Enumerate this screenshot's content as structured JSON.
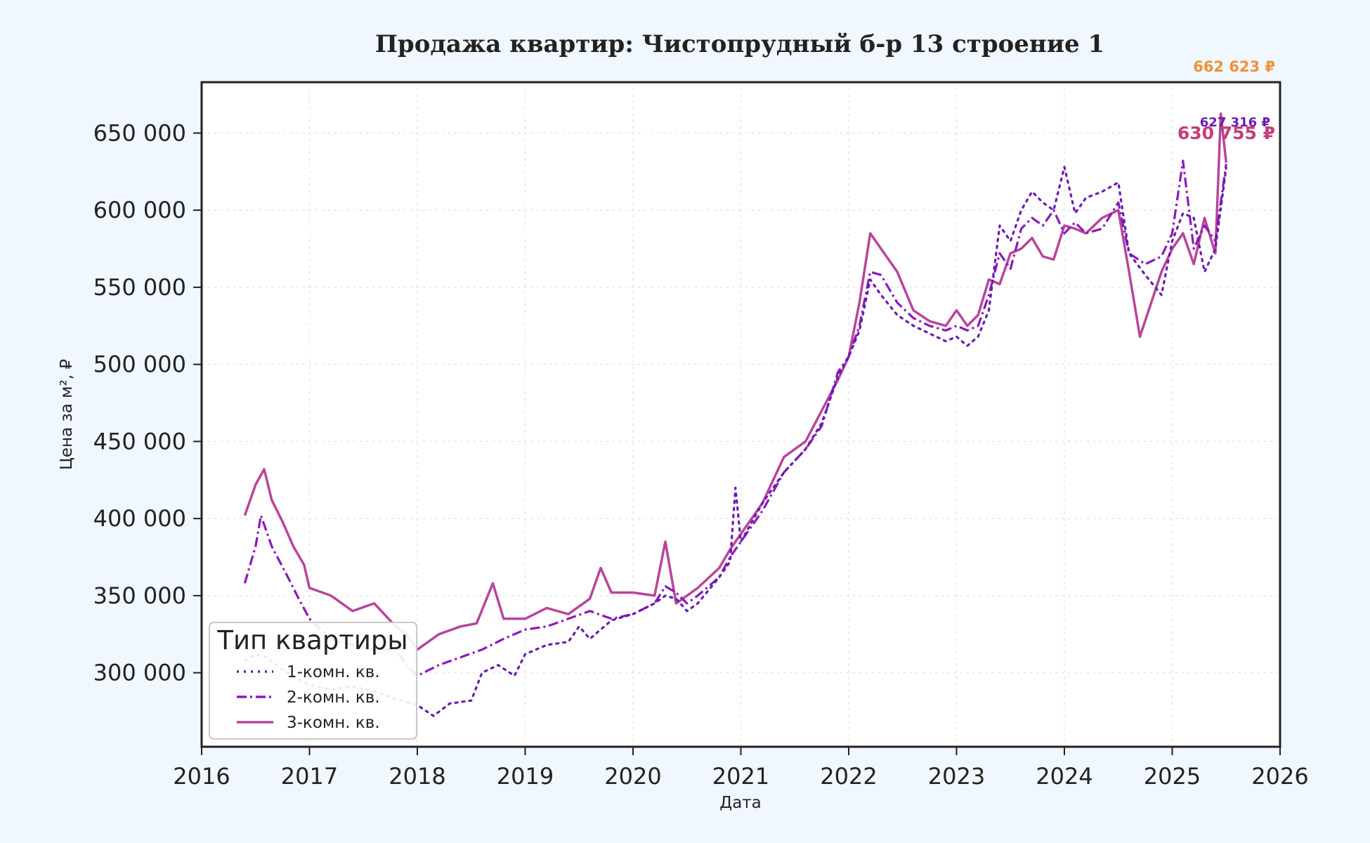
{
  "chart_data": {
    "type": "line",
    "title": "Продажа квартир: Чистопрудный б-р 13 строение 1",
    "xlabel": "Дата",
    "ylabel": "Цена за м², ₽",
    "xlim": [
      2016.0,
      2026.0
    ],
    "ylim": [
      252000,
      683000
    ],
    "x_ticks": [
      "2016",
      "2017",
      "2018",
      "2019",
      "2020",
      "2021",
      "2022",
      "2023",
      "2024",
      "2025",
      "2026"
    ],
    "y_ticks": [
      {
        "value": 300000,
        "label": "300 000"
      },
      {
        "value": 350000,
        "label": "350 000"
      },
      {
        "value": 400000,
        "label": "400 000"
      },
      {
        "value": 450000,
        "label": "450 000"
      },
      {
        "value": 500000,
        "label": "500 000"
      },
      {
        "value": 550000,
        "label": "550 000"
      },
      {
        "value": 600000,
        "label": "600 000"
      },
      {
        "value": 650000,
        "label": "650 000"
      }
    ],
    "grid": true,
    "legend": {
      "title": "Тип квартиры",
      "placement": "lower-left"
    },
    "series": [
      {
        "name": "1-комн. кв.",
        "color": "#6a1bb0",
        "style": "dotted",
        "x": [
          2016.4,
          2016.5,
          2016.6,
          2016.75,
          2016.9,
          2017.0,
          2017.2,
          2017.4,
          2017.6,
          2017.8,
          2018.0,
          2018.15,
          2018.3,
          2018.5,
          2018.6,
          2018.75,
          2018.9,
          2019.0,
          2019.2,
          2019.4,
          2019.5,
          2019.6,
          2019.8,
          2020.0,
          2020.2,
          2020.3,
          2020.4,
          2020.5,
          2020.6,
          2020.8,
          2020.9,
          2020.95,
          2021.0,
          2021.2,
          2021.4,
          2021.6,
          2021.75,
          2021.9,
          2022.0,
          2022.1,
          2022.2,
          2022.3,
          2022.45,
          2022.6,
          2022.75,
          2022.9,
          2023.0,
          2023.1,
          2023.2,
          2023.3,
          2023.4,
          2023.5,
          2023.6,
          2023.7,
          2023.8,
          2023.9,
          2024.0,
          2024.1,
          2024.2,
          2024.35,
          2024.5,
          2024.6,
          2024.75,
          2024.9,
          2025.0,
          2025.1,
          2025.2,
          2025.3,
          2025.4,
          2025.5
        ],
        "values": [
          308000,
          312000,
          310000,
          302000,
          296000,
          292000,
          289000,
          291000,
          288000,
          283000,
          279000,
          272000,
          280000,
          282000,
          300000,
          305000,
          298000,
          312000,
          318000,
          320000,
          330000,
          322000,
          334000,
          338000,
          345000,
          350000,
          348000,
          340000,
          345000,
          362000,
          372000,
          420000,
          385000,
          410000,
          430000,
          445000,
          462000,
          492000,
          505000,
          522000,
          555000,
          545000,
          532000,
          525000,
          520000,
          515000,
          518000,
          512000,
          518000,
          535000,
          590000,
          580000,
          600000,
          612000,
          605000,
          600000,
          628000,
          598000,
          608000,
          612000,
          618000,
          572000,
          558000,
          545000,
          580000,
          598000,
          595000,
          560000,
          575000,
          627316
        ]
      },
      {
        "name": "2-комн. кв.",
        "color": "#8a1ab8",
        "style": "dashdot",
        "x": [
          2016.4,
          2016.5,
          2016.55,
          2016.65,
          2016.8,
          2016.9,
          2017.0,
          2017.2,
          2017.4,
          2017.6,
          2017.8,
          2017.9,
          2018.0,
          2018.2,
          2018.4,
          2018.6,
          2018.8,
          2019.0,
          2019.2,
          2019.4,
          2019.6,
          2019.8,
          2020.0,
          2020.2,
          2020.3,
          2020.4,
          2020.5,
          2020.6,
          2020.8,
          2020.9,
          2021.0,
          2021.2,
          2021.4,
          2021.6,
          2021.75,
          2021.9,
          2022.0,
          2022.1,
          2022.2,
          2022.3,
          2022.45,
          2022.6,
          2022.75,
          2022.9,
          2023.0,
          2023.1,
          2023.2,
          2023.3,
          2023.4,
          2023.5,
          2023.6,
          2023.7,
          2023.8,
          2023.9,
          2024.0,
          2024.1,
          2024.2,
          2024.35,
          2024.5,
          2024.6,
          2024.75,
          2024.9,
          2025.0,
          2025.1,
          2025.2,
          2025.3,
          2025.4,
          2025.5
        ],
        "values": [
          358000,
          382000,
          402000,
          382000,
          362000,
          348000,
          335000,
          322000,
          318000,
          315000,
          315000,
          305000,
          298000,
          305000,
          310000,
          315000,
          322000,
          328000,
          330000,
          335000,
          340000,
          335000,
          338000,
          345000,
          356000,
          352000,
          345000,
          350000,
          362000,
          375000,
          385000,
          405000,
          430000,
          445000,
          460000,
          495000,
          505000,
          525000,
          560000,
          558000,
          540000,
          530000,
          525000,
          522000,
          525000,
          522000,
          525000,
          545000,
          572000,
          562000,
          588000,
          595000,
          590000,
          600000,
          585000,
          592000,
          585000,
          588000,
          605000,
          572000,
          565000,
          570000,
          585000,
          632000,
          575000,
          590000,
          580000,
          630000
        ]
      },
      {
        "name": "3-комн. кв.",
        "color": "#b8459a",
        "style": "solid",
        "x": [
          2016.4,
          2016.5,
          2016.58,
          2016.65,
          2016.75,
          2016.85,
          2016.95,
          2017.0,
          2017.2,
          2017.4,
          2017.6,
          2017.8,
          2017.9,
          2018.0,
          2018.2,
          2018.4,
          2018.55,
          2018.7,
          2018.8,
          2019.0,
          2019.2,
          2019.4,
          2019.6,
          2019.7,
          2019.8,
          2020.0,
          2020.2,
          2020.3,
          2020.4,
          2020.5,
          2020.6,
          2020.8,
          2020.9,
          2021.0,
          2021.2,
          2021.4,
          2021.6,
          2021.75,
          2021.9,
          2022.0,
          2022.1,
          2022.2,
          2022.3,
          2022.45,
          2022.6,
          2022.75,
          2022.9,
          2023.0,
          2023.1,
          2023.2,
          2023.3,
          2023.4,
          2023.5,
          2023.6,
          2023.7,
          2023.8,
          2023.9,
          2024.0,
          2024.1,
          2024.2,
          2024.35,
          2024.5,
          2024.6,
          2024.7,
          2024.9,
          2025.0,
          2025.1,
          2025.2,
          2025.3,
          2025.4,
          2025.45,
          2025.5
        ],
        "values": [
          402000,
          422000,
          432000,
          412000,
          398000,
          382000,
          370000,
          355000,
          350000,
          340000,
          345000,
          330000,
          325000,
          315000,
          325000,
          330000,
          332000,
          358000,
          335000,
          335000,
          342000,
          338000,
          348000,
          368000,
          352000,
          352000,
          350000,
          385000,
          345000,
          350000,
          355000,
          368000,
          380000,
          390000,
          410000,
          440000,
          450000,
          470000,
          490000,
          505000,
          540000,
          585000,
          575000,
          560000,
          535000,
          528000,
          525000,
          535000,
          525000,
          532000,
          555000,
          552000,
          572000,
          575000,
          582000,
          570000,
          568000,
          590000,
          588000,
          585000,
          595000,
          600000,
          560000,
          518000,
          560000,
          575000,
          585000,
          565000,
          595000,
          572000,
          662623,
          630755
        ]
      }
    ],
    "annotations": [
      {
        "text": "662 623 ₽",
        "color": "#f0913a",
        "x": 2025.45,
        "y": 662623
      },
      {
        "text": "627 316 ₽",
        "color": "#6a1bb0",
        "x": 2025.5,
        "y": 627316
      },
      {
        "text": "630 755 ₽",
        "color": "#c43e7a",
        "x": 2025.5,
        "y": 630755
      }
    ]
  }
}
